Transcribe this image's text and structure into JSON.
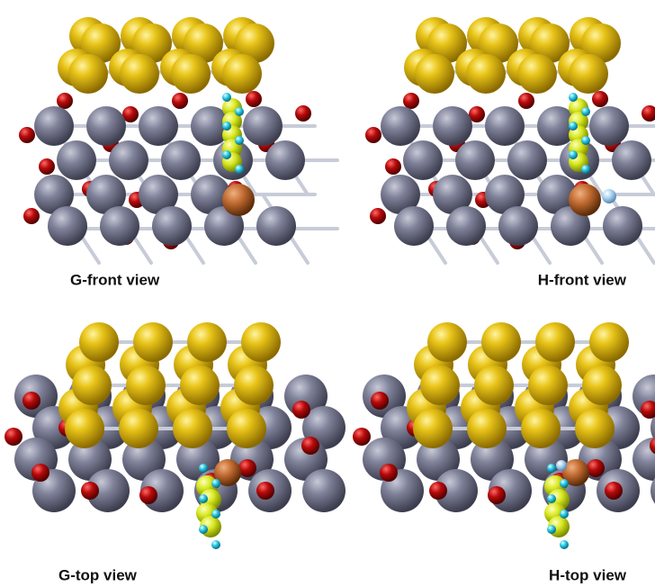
{
  "panels": [
    {
      "label": "G-front view"
    },
    {
      "label": "H-front view"
    },
    {
      "label": "G-top view"
    },
    {
      "label": "H-top view"
    }
  ]
}
